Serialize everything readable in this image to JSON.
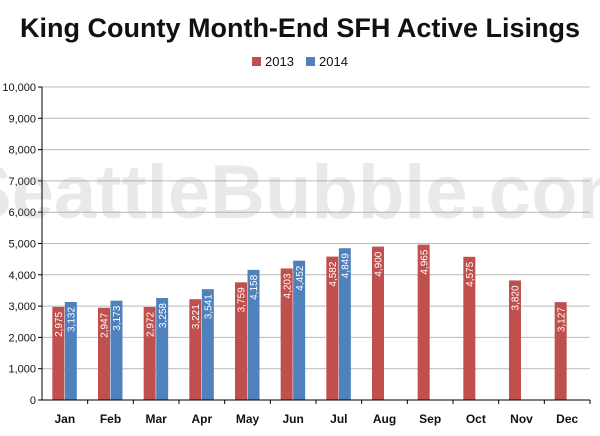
{
  "chart_data": {
    "type": "bar",
    "title": "King County Month-End SFH Active Lisings",
    "categories": [
      "Jan",
      "Feb",
      "Mar",
      "Apr",
      "May",
      "Jun",
      "Jul",
      "Aug",
      "Sep",
      "Oct",
      "Nov",
      "Dec"
    ],
    "series": [
      {
        "name": "2013",
        "color": "#c0504d",
        "values": [
          2975,
          2947,
          2972,
          3221,
          3759,
          4203,
          4582,
          4900,
          4965,
          4575,
          3820,
          3127
        ]
      },
      {
        "name": "2014",
        "color": "#4f81bd",
        "values": [
          3132,
          3173,
          3258,
          3541,
          4158,
          4452,
          4849,
          null,
          null,
          null,
          null,
          null
        ]
      }
    ],
    "ylim": [
      0,
      10000
    ],
    "yticks": [
      0,
      1000,
      2000,
      3000,
      4000,
      5000,
      6000,
      7000,
      8000,
      9000,
      10000
    ],
    "ytick_labels": [
      "0",
      "1,000",
      "2,000",
      "3,000",
      "4,000",
      "5,000",
      "6,000",
      "7,000",
      "8,000",
      "9,000",
      "10,000"
    ],
    "data_labels": [
      [
        "2,975",
        "2,947",
        "2,972",
        "3,221",
        "3,759",
        "4,203",
        "4,582",
        "4,900",
        "4,965",
        "4,575",
        "3,820",
        "3,127"
      ],
      [
        "3,132",
        "3,173",
        "3,258",
        "3,541",
        "4,158",
        "4,452",
        "4,849",
        null,
        null,
        null,
        null,
        null
      ]
    ],
    "legend_placement": "top-center",
    "grid": true,
    "xlabel": "",
    "ylabel": "",
    "watermark": "SeattleBubble.com"
  }
}
